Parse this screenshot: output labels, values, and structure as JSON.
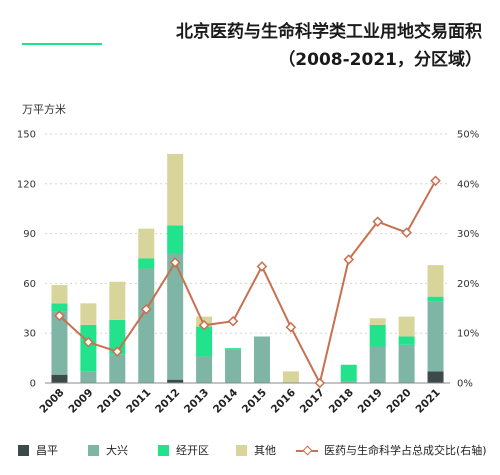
{
  "header": {
    "title_line1": "北京医药与生命科学类工业用地交易面积",
    "title_line2": "（2008-2021，分区域）"
  },
  "colors": {
    "changping": "#3d4a4a",
    "daxing": "#7fb5a5",
    "jingkai": "#22e38c",
    "other": "#d8d59a",
    "line": "#c8704f",
    "accent": "#1fe38a"
  },
  "chart_data": {
    "type": "bar",
    "stacked": true,
    "categories": [
      "2008",
      "2009",
      "2010",
      "2011",
      "2012",
      "2013",
      "2014",
      "2015",
      "2016",
      "2017",
      "2018",
      "2019",
      "2020",
      "2021"
    ],
    "ylabel": "万平方米",
    "ylim": [
      0,
      150
    ],
    "yticks": [
      "0",
      "30",
      "60",
      "90",
      "120",
      "150"
    ],
    "y2lim": [
      0,
      50
    ],
    "y2ticks": [
      "0%",
      "10%",
      "20%",
      "30%",
      "40%",
      "50%"
    ],
    "series": [
      {
        "name": "昌平",
        "values": [
          5,
          0,
          0,
          0,
          2,
          0,
          0,
          0,
          0,
          0,
          0,
          0,
          0,
          7
        ]
      },
      {
        "name": "大兴",
        "values": [
          38,
          7,
          17,
          69,
          76,
          16,
          20,
          28,
          0,
          0,
          1,
          22,
          23,
          42
        ]
      },
      {
        "name": "经开区",
        "values": [
          5,
          28,
          21,
          6,
          17,
          18,
          1,
          0,
          0,
          0,
          10,
          13,
          5,
          3
        ]
      },
      {
        "name": "其他",
        "values": [
          11,
          13,
          23,
          18,
          43,
          6,
          0,
          0,
          7,
          0,
          0,
          4,
          12,
          19
        ]
      }
    ],
    "line": {
      "name": "医药与生命科学占总成交比(右轴)",
      "values": [
        13.5,
        8.2,
        6.3,
        14.8,
        24.2,
        11.6,
        12.4,
        23.4,
        11.2,
        0,
        24.8,
        32.4,
        30.2,
        40.6
      ]
    },
    "legend_position": "bottom"
  }
}
